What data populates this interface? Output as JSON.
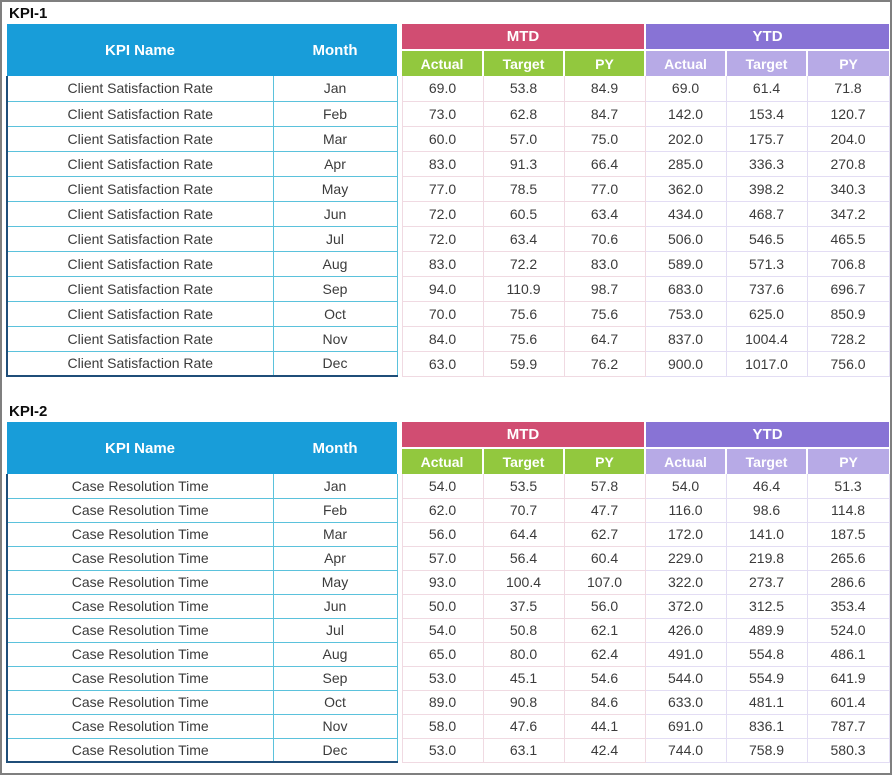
{
  "colors": {
    "header_blue": "#189DD9",
    "mtd_crimson": "#D14D72",
    "mtd_sub_green": "#92C83E",
    "ytd_purple": "#8873D5",
    "ytd_sub_lavender": "#B7AAE6",
    "row_border_cyan": "#5BC2DC",
    "block_outline_navy": "#1F4E79",
    "mtd_cell_border": "#F0DAE2",
    "ytd_cell_border": "#E3DDF4",
    "frame_gray": "#7F7F7F",
    "header_text": "#FFFFFF",
    "cell_text": "#3B3B3B"
  },
  "tables": [
    {
      "title": "KPI-1",
      "kpi_name": "Client Satisfaction Rate",
      "header": {
        "kpi_name": "KPI Name",
        "month": "Month",
        "mtd": "MTD",
        "ytd": "YTD",
        "sub": [
          "Actual",
          "Target",
          "PY"
        ]
      },
      "rows": [
        {
          "month": "Jan",
          "mtd": [
            "69.0",
            "53.8",
            "84.9"
          ],
          "ytd": [
            "69.0",
            "61.4",
            "71.8"
          ]
        },
        {
          "month": "Feb",
          "mtd": [
            "73.0",
            "62.8",
            "84.7"
          ],
          "ytd": [
            "142.0",
            "153.4",
            "120.7"
          ]
        },
        {
          "month": "Mar",
          "mtd": [
            "60.0",
            "57.0",
            "75.0"
          ],
          "ytd": [
            "202.0",
            "175.7",
            "204.0"
          ]
        },
        {
          "month": "Apr",
          "mtd": [
            "83.0",
            "91.3",
            "66.4"
          ],
          "ytd": [
            "285.0",
            "336.3",
            "270.8"
          ]
        },
        {
          "month": "May",
          "mtd": [
            "77.0",
            "78.5",
            "77.0"
          ],
          "ytd": [
            "362.0",
            "398.2",
            "340.3"
          ]
        },
        {
          "month": "Jun",
          "mtd": [
            "72.0",
            "60.5",
            "63.4"
          ],
          "ytd": [
            "434.0",
            "468.7",
            "347.2"
          ]
        },
        {
          "month": "Jul",
          "mtd": [
            "72.0",
            "63.4",
            "70.6"
          ],
          "ytd": [
            "506.0",
            "546.5",
            "465.5"
          ]
        },
        {
          "month": "Aug",
          "mtd": [
            "83.0",
            "72.2",
            "83.0"
          ],
          "ytd": [
            "589.0",
            "571.3",
            "706.8"
          ]
        },
        {
          "month": "Sep",
          "mtd": [
            "94.0",
            "110.9",
            "98.7"
          ],
          "ytd": [
            "683.0",
            "737.6",
            "696.7"
          ]
        },
        {
          "month": "Oct",
          "mtd": [
            "70.0",
            "75.6",
            "75.6"
          ],
          "ytd": [
            "753.0",
            "625.0",
            "850.9"
          ]
        },
        {
          "month": "Nov",
          "mtd": [
            "84.0",
            "75.6",
            "64.7"
          ],
          "ytd": [
            "837.0",
            "1004.4",
            "728.2"
          ]
        },
        {
          "month": "Dec",
          "mtd": [
            "63.0",
            "59.9",
            "76.2"
          ],
          "ytd": [
            "900.0",
            "1017.0",
            "756.0"
          ]
        }
      ]
    },
    {
      "title": "KPI-2",
      "kpi_name": "Case Resolution Time",
      "header": {
        "kpi_name": "KPI Name",
        "month": "Month",
        "mtd": "MTD",
        "ytd": "YTD",
        "sub": [
          "Actual",
          "Target",
          "PY"
        ]
      },
      "rows": [
        {
          "month": "Jan",
          "mtd": [
            "54.0",
            "53.5",
            "57.8"
          ],
          "ytd": [
            "54.0",
            "46.4",
            "51.3"
          ]
        },
        {
          "month": "Feb",
          "mtd": [
            "62.0",
            "70.7",
            "47.7"
          ],
          "ytd": [
            "116.0",
            "98.6",
            "114.8"
          ]
        },
        {
          "month": "Mar",
          "mtd": [
            "56.0",
            "64.4",
            "62.7"
          ],
          "ytd": [
            "172.0",
            "141.0",
            "187.5"
          ]
        },
        {
          "month": "Apr",
          "mtd": [
            "57.0",
            "56.4",
            "60.4"
          ],
          "ytd": [
            "229.0",
            "219.8",
            "265.6"
          ]
        },
        {
          "month": "May",
          "mtd": [
            "93.0",
            "100.4",
            "107.0"
          ],
          "ytd": [
            "322.0",
            "273.7",
            "286.6"
          ]
        },
        {
          "month": "Jun",
          "mtd": [
            "50.0",
            "37.5",
            "56.0"
          ],
          "ytd": [
            "372.0",
            "312.5",
            "353.4"
          ]
        },
        {
          "month": "Jul",
          "mtd": [
            "54.0",
            "50.8",
            "62.1"
          ],
          "ytd": [
            "426.0",
            "489.9",
            "524.0"
          ]
        },
        {
          "month": "Aug",
          "mtd": [
            "65.0",
            "80.0",
            "62.4"
          ],
          "ytd": [
            "491.0",
            "554.8",
            "486.1"
          ]
        },
        {
          "month": "Sep",
          "mtd": [
            "53.0",
            "45.1",
            "54.6"
          ],
          "ytd": [
            "544.0",
            "554.9",
            "641.9"
          ]
        },
        {
          "month": "Oct",
          "mtd": [
            "89.0",
            "90.8",
            "84.6"
          ],
          "ytd": [
            "633.0",
            "481.1",
            "601.4"
          ]
        },
        {
          "month": "Nov",
          "mtd": [
            "58.0",
            "47.6",
            "44.1"
          ],
          "ytd": [
            "691.0",
            "836.1",
            "787.7"
          ]
        },
        {
          "month": "Dec",
          "mtd": [
            "53.0",
            "63.1",
            "42.4"
          ],
          "ytd": [
            "744.0",
            "758.9",
            "580.3"
          ]
        }
      ]
    }
  ]
}
